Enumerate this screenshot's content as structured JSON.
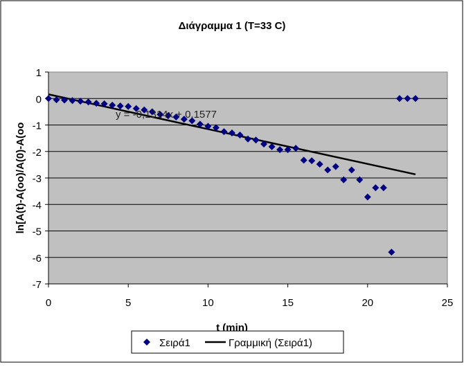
{
  "chart_data": {
    "type": "scatter",
    "title": "Διάγραμμα 1 (T=33 C)",
    "xlabel": "t (min)",
    "ylabel": "ln[A(t)-A(oo)/A(0)-A(oo",
    "xlim": [
      0,
      25
    ],
    "ylim": [
      -7,
      1
    ],
    "xticks": [
      0,
      5,
      10,
      15,
      20,
      25
    ],
    "yticks": [
      1,
      0,
      -1,
      -2,
      -3,
      -4,
      -5,
      -6,
      -7
    ],
    "grid": "horizontal",
    "legend_position": "bottom",
    "series": [
      {
        "name": "Σειρά1",
        "color": "#000080",
        "marker": "diamond",
        "x": [
          0,
          0.5,
          1,
          1.5,
          2,
          2.5,
          3,
          3.5,
          4,
          4.5,
          5,
          5.5,
          6,
          6.5,
          7,
          7.5,
          8,
          8.5,
          9,
          9.5,
          10,
          10.5,
          11,
          11.5,
          12,
          12.5,
          13,
          13.5,
          14,
          14.5,
          15,
          15.5,
          16,
          16.5,
          17,
          17.5,
          18,
          18.5,
          19,
          19.5,
          20,
          20.5,
          21,
          21.5,
          22,
          22.5,
          23
        ],
        "y": [
          0,
          -0.05,
          -0.06,
          -0.08,
          -0.1,
          -0.13,
          -0.18,
          -0.2,
          -0.25,
          -0.28,
          -0.3,
          -0.38,
          -0.43,
          -0.5,
          -0.6,
          -0.65,
          -0.7,
          -0.78,
          -0.84,
          -0.97,
          -1.05,
          -1.1,
          -1.25,
          -1.3,
          -1.38,
          -1.53,
          -1.57,
          -1.72,
          -1.82,
          -1.93,
          -1.93,
          -1.88,
          -2.33,
          -2.35,
          -2.48,
          -2.7,
          -2.57,
          -3.07,
          -2.7,
          -3.07,
          -3.72,
          -3.37,
          -3.37,
          -5.8,
          0,
          0,
          0
        ]
      },
      {
        "name": "Γραμμική (Σειρά1)",
        "type": "trendline",
        "color": "#000000",
        "slope": -0.1314,
        "intercept": 0.1577,
        "x_range": [
          0,
          23
        ]
      }
    ],
    "annotation": "y = -0,1314x + 0,1577",
    "plot_background": "#c0c0c0"
  }
}
